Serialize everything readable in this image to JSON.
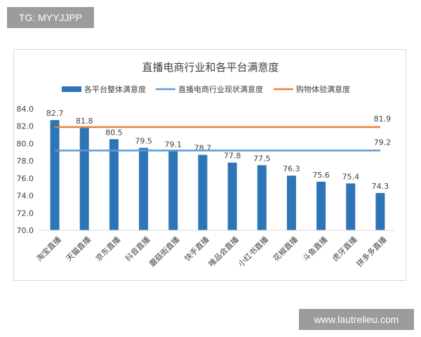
{
  "watermark_tag": "TG: MYYJJPP",
  "watermark_site": "www.lautrelieu.com",
  "colors": {
    "bar": "#2e75b6",
    "line_industry": "#5b9bd5",
    "line_shopping": "#ed7d31",
    "axis_text": "#404040",
    "grid": "#d9d9d9"
  },
  "chart_data": {
    "type": "bar",
    "title": "直播电商行业和各平台满意度",
    "ylim": [
      70,
      84
    ],
    "yticks": [
      "70.0",
      "72.0",
      "74.0",
      "76.0",
      "78.0",
      "80.0",
      "82.0",
      "84.0"
    ],
    "grid": false,
    "legend_position": "top",
    "categories": [
      "淘宝直播",
      "天猫直播",
      "京东直播",
      "抖音直播",
      "蘑菇街直播",
      "快手直播",
      "唯品会直播",
      "小红书直播",
      "花椒直播",
      "斗鱼直播",
      "虎牙直播",
      "拼多多直播"
    ],
    "series": [
      {
        "name": "各平台整体满意度",
        "type": "bar",
        "values": [
          82.7,
          81.8,
          80.5,
          79.5,
          79.1,
          78.7,
          77.8,
          77.5,
          76.3,
          75.6,
          75.4,
          74.3
        ],
        "labels": [
          "82.7",
          "81.8",
          "80.5",
          "79.5",
          "79.1",
          "78.7",
          "77.8",
          "77.5",
          "76.3",
          "75.6",
          "75.4",
          "74.3"
        ]
      },
      {
        "name": "直播电商行业现状满意度",
        "type": "line",
        "value": 79.2,
        "label": "79.2"
      },
      {
        "name": "购物体验满意度",
        "type": "line",
        "value": 81.9,
        "label": "81.9"
      }
    ]
  }
}
